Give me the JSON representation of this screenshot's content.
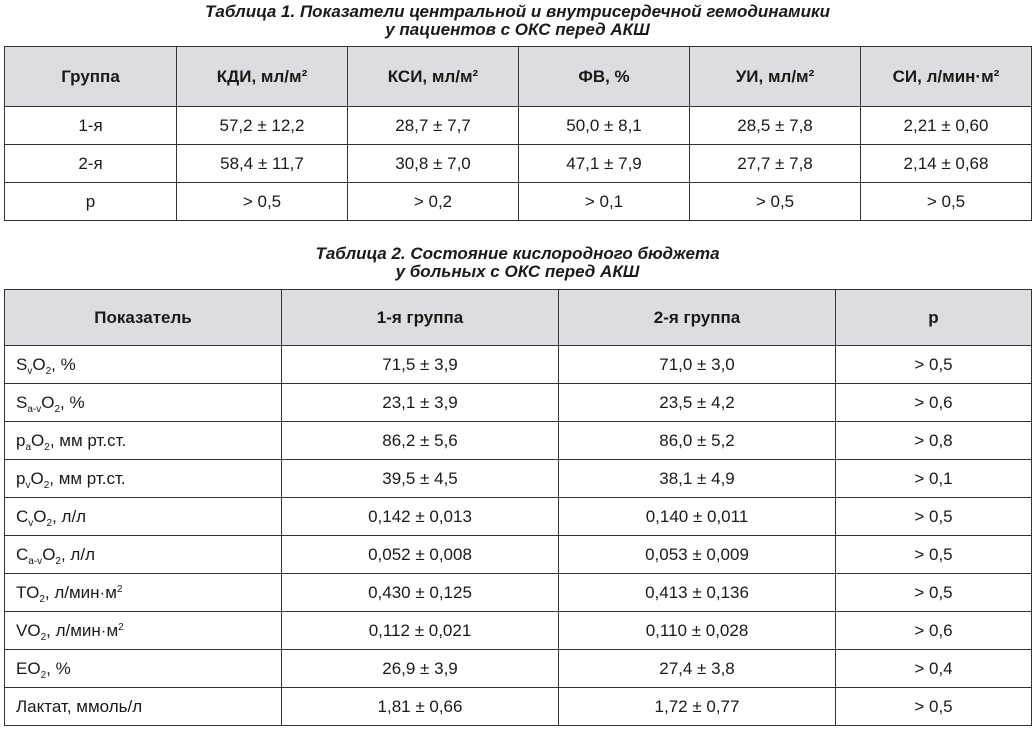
{
  "table1": {
    "caption_line1": "Таблица 1.  Показатели центральной и внутрисердечной гемодинамики",
    "caption_line2": "у пациентов с ОКС перед АКШ",
    "headers": [
      "Группа",
      "КДИ, мл/м²",
      "КСИ, мл/м²",
      "ФВ, %",
      "УИ, мл/м²",
      "СИ, л/мин·м²"
    ],
    "rows": [
      [
        "1-я",
        "57,2 ± 12,2",
        "28,7 ± 7,7",
        "50,0 ± 8,1",
        "28,5 ± 7,8",
        "2,21 ± 0,60"
      ],
      [
        "2-я",
        "58,4 ± 11,7",
        "30,8 ± 7,0",
        "47,1 ± 7,9",
        "27,7 ± 7,8",
        "2,14 ± 0,68"
      ],
      [
        "p",
        "> 0,5",
        "> 0,2",
        "> 0,1",
        "> 0,5",
        "> 0,5"
      ]
    ]
  },
  "table2": {
    "caption_line1": "Таблица 2.  Состояние кислородного бюджета",
    "caption_line2": "у больных с ОКС перед АКШ",
    "headers": [
      "Показатель",
      "1-я группа",
      "2-я группа",
      "p"
    ],
    "rows": [
      {
        "name": {
          "base": "S",
          "sub": "v",
          "base2": "O",
          "sub2": "2",
          "unit": ", %",
          "sup": ""
        },
        "values": [
          "71,5 ± 3,9",
          "71,0 ± 3,0",
          "> 0,5"
        ]
      },
      {
        "name": {
          "base": "S",
          "sub": "a-v",
          "base2": "O",
          "sub2": "2",
          "unit": ", %",
          "sup": ""
        },
        "values": [
          "23,1 ± 3,9",
          "23,5 ± 4,2",
          "> 0,6"
        ]
      },
      {
        "name": {
          "base": "p",
          "sub": "a",
          "base2": "O",
          "sub2": "2",
          "unit": ", мм рт.ст.",
          "sup": ""
        },
        "values": [
          "86,2 ± 5,6",
          "86,0 ± 5,2",
          "> 0,8"
        ]
      },
      {
        "name": {
          "base": "p",
          "sub": "v",
          "base2": "O",
          "sub2": "2",
          "unit": ", мм рт.ст.",
          "sup": ""
        },
        "values": [
          "39,5 ± 4,5",
          "38,1 ± 4,9",
          "> 0,1"
        ]
      },
      {
        "name": {
          "base": "C",
          "sub": "v",
          "base2": "O",
          "sub2": "2",
          "unit": ", л/л",
          "sup": ""
        },
        "values": [
          "0,142 ± 0,013",
          "0,140 ± 0,011",
          "> 0,5"
        ]
      },
      {
        "name": {
          "base": "C",
          "sub": "a-v",
          "base2": "O",
          "sub2": "2",
          "unit": ", л/л",
          "sup": ""
        },
        "values": [
          "0,052 ± 0,008",
          "0,053 ± 0,009",
          "> 0,5"
        ]
      },
      {
        "name": {
          "base": "TO",
          "sub": "2",
          "base2": "",
          "sub2": "",
          "unit": ", л/мин·м",
          "sup": "2"
        },
        "values": [
          "0,430 ± 0,125",
          "0,413 ± 0,136",
          "> 0,5"
        ]
      },
      {
        "name": {
          "base": "VO",
          "sub": "2",
          "base2": "",
          "sub2": "",
          "unit": ", л/мин·м",
          "sup": "2"
        },
        "values": [
          "0,112 ± 0,021",
          "0,110 ± 0,028",
          "> 0,6"
        ]
      },
      {
        "name": {
          "base": "EO",
          "sub": "2",
          "base2": "",
          "sub2": "",
          "unit": ", %",
          "sup": ""
        },
        "values": [
          "26,9 ± 3,9",
          "27,4 ± 3,8",
          "> 0,4"
        ]
      },
      {
        "name": {
          "base": "Лактат, ммоль/л",
          "sub": "",
          "base2": "",
          "sub2": "",
          "unit": "",
          "sup": ""
        },
        "values": [
          "1,81 ± 0,66",
          "1,72 ± 0,77",
          "> 0,5"
        ]
      }
    ]
  }
}
